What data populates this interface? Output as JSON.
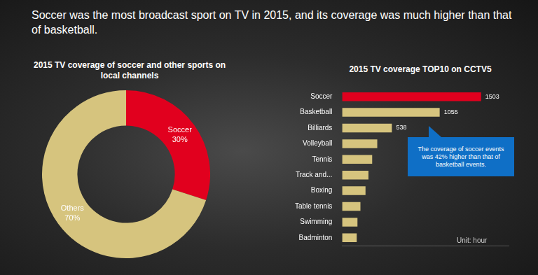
{
  "headline": "Soccer was the most broadcast sport on TV in 2015, and its coverage was much higher than that of basketball.",
  "chart_data": [
    {
      "type": "doughnut",
      "title": "2015 TV coverage of soccer and other sports on local channels",
      "categories": [
        "Soccer",
        "Others"
      ],
      "values": [
        30,
        70
      ],
      "value_labels": [
        "30%",
        "70%"
      ],
      "colors": [
        "#e1001e",
        "#d6c47e"
      ],
      "data_labels": true
    },
    {
      "type": "bar",
      "orientation": "horizontal",
      "title": "2015 TV coverage TOP10 on CCTV5",
      "categories": [
        "Soccer",
        "Basketball",
        "Billiards",
        "Volleyball",
        "Tennis",
        "Track and...",
        "Boxing",
        "Table tennis",
        "Swimming",
        "Badminton"
      ],
      "values": [
        1503,
        1055,
        538,
        380,
        325,
        285,
        253,
        198,
        166,
        158
      ],
      "value_labels": [
        "1503",
        "1055",
        "538",
        null,
        null,
        null,
        null,
        null,
        null,
        null
      ],
      "colors": [
        "#e1001e",
        "#d6c47e",
        "#d6c47e",
        "#d6c47e",
        "#d6c47e",
        "#d6c47e",
        "#d6c47e",
        "#d6c47e",
        "#d6c47e",
        "#d6c47e"
      ],
      "xlim": [
        0,
        1800
      ],
      "grid": false,
      "tick_labels": "y",
      "data_labels": true,
      "annotation": "The coverage of soccer events was 42% higher than that of basketball events.",
      "note": "Unit: hour"
    }
  ]
}
